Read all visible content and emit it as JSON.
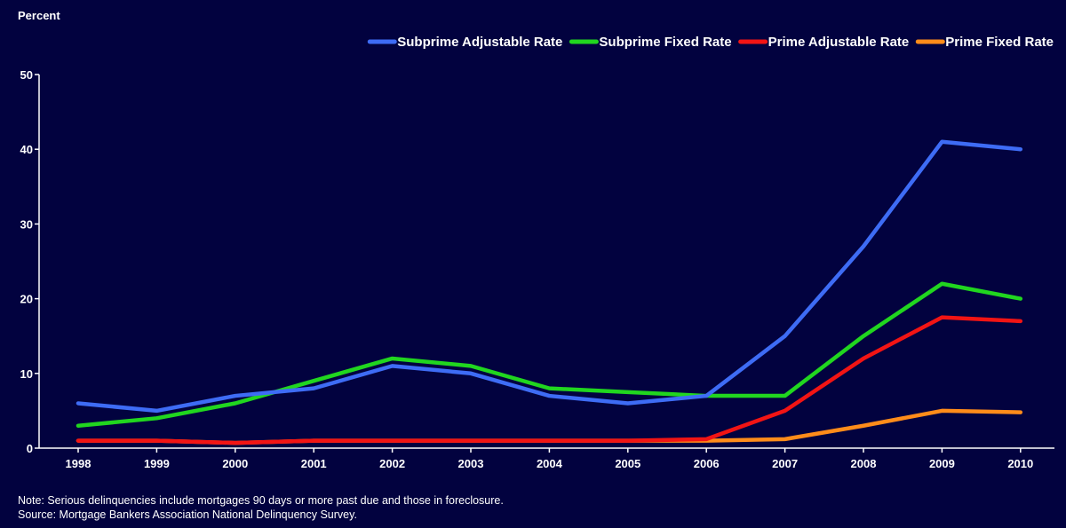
{
  "chart_data": {
    "type": "line",
    "ylabel": "Percent",
    "xlabel": "",
    "ylim": [
      0,
      50
    ],
    "yticks": [
      0,
      10,
      20,
      30,
      40,
      50
    ],
    "categories": [
      "1998",
      "1999",
      "2000",
      "2001",
      "2002",
      "2003",
      "2004",
      "2005",
      "2006",
      "2007",
      "2008",
      "2009",
      "2010"
    ],
    "legend_position": "top-right",
    "grid": false,
    "series": [
      {
        "name": "Subprime Adjustable Rate",
        "color": "#3e6cf5",
        "values": [
          6,
          5,
          7,
          8,
          11,
          10,
          7,
          6,
          7,
          15,
          27,
          41,
          40
        ]
      },
      {
        "name": "Subprime Fixed Rate",
        "color": "#21d61f",
        "values": [
          3,
          4,
          6,
          9,
          12,
          11,
          8,
          7.5,
          7,
          7,
          15,
          22,
          20
        ]
      },
      {
        "name": "Prime Adjustable Rate",
        "color": "#f21414",
        "values": [
          1,
          1,
          0.7,
          1,
          1,
          1,
          1,
          1,
          1.2,
          5,
          12,
          17.5,
          17
        ]
      },
      {
        "name": "Prime Fixed Rate",
        "color": "#ff8c1a",
        "values": [
          1,
          1,
          0.7,
          1,
          1,
          1,
          1,
          1,
          1,
          1.2,
          3,
          5,
          4.8
        ]
      }
    ]
  },
  "notes": {
    "line1": "Note: Serious delinquencies include mortgages 90 days or more past due and those in foreclosure.",
    "line2": "Source: Mortgage Bankers Association National Delinquency Survey."
  }
}
